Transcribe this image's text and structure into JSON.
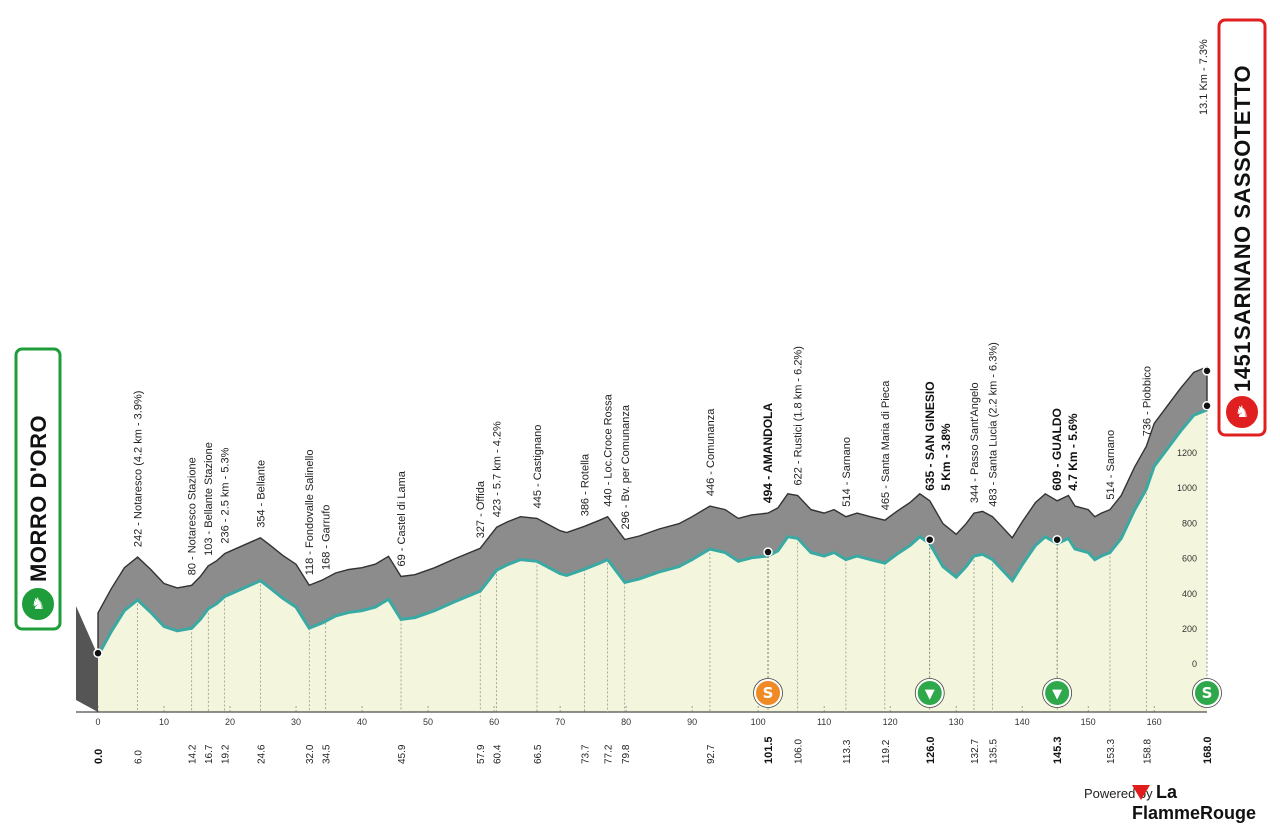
{
  "chart_data": {
    "type": "area",
    "title": "",
    "xlabel": "",
    "ylabel": "",
    "xlim": [
      0,
      168
    ],
    "ylim": [
      -450,
      2100
    ],
    "y_ticks": [
      0,
      200,
      400,
      600,
      800,
      1000,
      1200
    ],
    "x_ticks": [
      0,
      10,
      20,
      30,
      40,
      50,
      60,
      70,
      80,
      90,
      100,
      110,
      120,
      130,
      140,
      150,
      160
    ],
    "profile": [
      [
        0,
        53
      ],
      [
        2,
        190
      ],
      [
        4,
        310
      ],
      [
        6,
        370
      ],
      [
        8,
        300
      ],
      [
        10,
        220
      ],
      [
        12,
        195
      ],
      [
        14.2,
        210
      ],
      [
        15.5,
        260
      ],
      [
        16.7,
        320
      ],
      [
        18,
        350
      ],
      [
        19.2,
        390
      ],
      [
        21,
        420
      ],
      [
        24.6,
        480
      ],
      [
        26,
        440
      ],
      [
        28,
        380
      ],
      [
        30,
        330
      ],
      [
        32,
        210
      ],
      [
        34,
        240
      ],
      [
        36,
        280
      ],
      [
        38,
        300
      ],
      [
        40,
        310
      ],
      [
        42,
        330
      ],
      [
        44,
        375
      ],
      [
        45.9,
        260
      ],
      [
        48,
        270
      ],
      [
        51,
        310
      ],
      [
        54,
        360
      ],
      [
        57.9,
        420
      ],
      [
        60.4,
        540
      ],
      [
        62,
        570
      ],
      [
        64,
        600
      ],
      [
        66.5,
        590
      ],
      [
        68,
        560
      ],
      [
        70,
        520
      ],
      [
        71,
        510
      ],
      [
        73.7,
        545
      ],
      [
        76,
        580
      ],
      [
        77.2,
        600
      ],
      [
        79.8,
        470
      ],
      [
        82,
        490
      ],
      [
        85,
        530
      ],
      [
        88,
        560
      ],
      [
        90,
        600
      ],
      [
        92.7,
        660
      ],
      [
        95,
        640
      ],
      [
        97,
        590
      ],
      [
        99,
        610
      ],
      [
        101.5,
        620
      ],
      [
        103,
        650
      ],
      [
        104.5,
        730
      ],
      [
        106,
        720
      ],
      [
        108,
        640
      ],
      [
        110,
        620
      ],
      [
        111.5,
        640
      ],
      [
        113.3,
        600
      ],
      [
        115,
        620
      ],
      [
        117,
        600
      ],
      [
        119.2,
        580
      ],
      [
        121,
        630
      ],
      [
        123,
        680
      ],
      [
        124.5,
        730
      ],
      [
        126,
        690
      ],
      [
        128,
        560
      ],
      [
        130,
        500
      ],
      [
        131.5,
        560
      ],
      [
        132.7,
        620
      ],
      [
        134,
        630
      ],
      [
        135.5,
        600
      ],
      [
        137,
        540
      ],
      [
        138.5,
        480
      ],
      [
        140,
        570
      ],
      [
        142,
        680
      ],
      [
        143.5,
        730
      ],
      [
        145.3,
        690
      ],
      [
        147,
        720
      ],
      [
        148,
        660
      ],
      [
        150,
        640
      ],
      [
        151,
        600
      ],
      [
        152,
        620
      ],
      [
        153.3,
        640
      ],
      [
        155,
        720
      ],
      [
        157,
        880
      ],
      [
        158.8,
        1000
      ],
      [
        160,
        1130
      ],
      [
        162,
        1230
      ],
      [
        164,
        1330
      ],
      [
        166,
        1420
      ],
      [
        168,
        1451
      ]
    ],
    "start": {
      "km": "0.0",
      "altitude": "53",
      "name": "MORRO D'ORO"
    },
    "finish": {
      "km": "168.0",
      "altitude": "1451",
      "name": "SARNANO SASSOTETTO",
      "climb": "13.1 Km - 7.3%"
    },
    "waypoints": [
      {
        "km": 6.0,
        "label": "242 - Notaresco (4.2 km - 3.9%)",
        "bold": false
      },
      {
        "km": 14.2,
        "label": "80 - Notaresco Stazione",
        "bold": false
      },
      {
        "km": 16.7,
        "label": "103 - Bellante Stazione",
        "bold": false
      },
      {
        "km": 19.2,
        "label": "236 - 2.5 km - 5.3%",
        "bold": false
      },
      {
        "km": 24.6,
        "label": "354 - Bellante",
        "bold": false
      },
      {
        "km": 32.0,
        "label": "118 - Fondovalle Salinello",
        "bold": false
      },
      {
        "km": 34.5,
        "label": "168 - Garrufo",
        "bold": false
      },
      {
        "km": 45.9,
        "label": "69 - Castel di Lama",
        "bold": false
      },
      {
        "km": 57.9,
        "label": "327 - Offida",
        "bold": false
      },
      {
        "km": 60.4,
        "label": "423 - 5.7 km - 4.2%",
        "bold": false
      },
      {
        "km": 66.5,
        "label": "445 - Castignano",
        "bold": false
      },
      {
        "km": 73.7,
        "label": "386 - Rotella",
        "bold": false
      },
      {
        "km": 77.2,
        "label": "440 - Loc.Croce Rossa",
        "bold": false
      },
      {
        "km": 79.8,
        "label": "296 - Bv. per Comunanza",
        "bold": false
      },
      {
        "km": 92.7,
        "label": "446 - Comunanza",
        "bold": false
      },
      {
        "km": 101.5,
        "label": "494 - AMANDOLA",
        "bold": true
      },
      {
        "km": 106.0,
        "label": "622 - Rustici (1.8 km - 6.2%)",
        "bold": false
      },
      {
        "km": 113.3,
        "label": "514 - Sarnano",
        "bold": false
      },
      {
        "km": 119.2,
        "label": "465 - Santa Maria di Pieca",
        "bold": false
      },
      {
        "km": 126.0,
        "label": "635 - SAN GINESIO",
        "label2": "5 Km - 3.8%",
        "bold": true
      },
      {
        "km": 132.7,
        "label": "344 - Passo Sant'Angelo",
        "bold": false
      },
      {
        "km": 135.5,
        "label": "483 - Santa Lucia (2.2 km - 6.3%)",
        "bold": false
      },
      {
        "km": 145.3,
        "label": "609 - GUALDO",
        "label2": "4.7 Km - 5.6%",
        "bold": true
      },
      {
        "km": 153.3,
        "label": "514 - Sarnano",
        "bold": false
      },
      {
        "km": 158.8,
        "label": "736 - Piobbico",
        "bold": false
      }
    ],
    "km_marks": [
      "0.0",
      "6.0",
      "14.2",
      "16.7",
      "19.2",
      "24.6",
      "32.0",
      "34.5",
      "45.9",
      "57.9",
      "60.4",
      "66.5",
      "73.7",
      "77.2",
      "79.8",
      "92.7",
      "101.5",
      "106.0",
      "113.3",
      "119.2",
      "126.0",
      "132.7",
      "135.5",
      "145.3",
      "153.3",
      "158.8",
      "168.0"
    ],
    "km_marks_bold": [
      "0.0",
      "101.5",
      "126.0",
      "145.3",
      "168.0"
    ],
    "markers": [
      {
        "km": 101.5,
        "type": "sprint",
        "symbol": "S",
        "color": "#f08a24"
      },
      {
        "km": 126.0,
        "type": "kom",
        "symbol": "▼",
        "color": "#2ea84a"
      },
      {
        "km": 145.3,
        "type": "kom",
        "symbol": "▼",
        "color": "#2ea84a"
      },
      {
        "km": 168.0,
        "type": "finish-sprint",
        "symbol": "S",
        "color": "#2ea84a"
      }
    ],
    "colors": {
      "profile_gray": "#8c8c8c",
      "route_line": "#3aa9a4",
      "plane": "#f3f6dc",
      "start_badge": "#1f9d3a",
      "finish_badge": "#e02020"
    }
  },
  "footer": {
    "powered_by": "Powered by",
    "brand": "La FlammeRouge"
  }
}
